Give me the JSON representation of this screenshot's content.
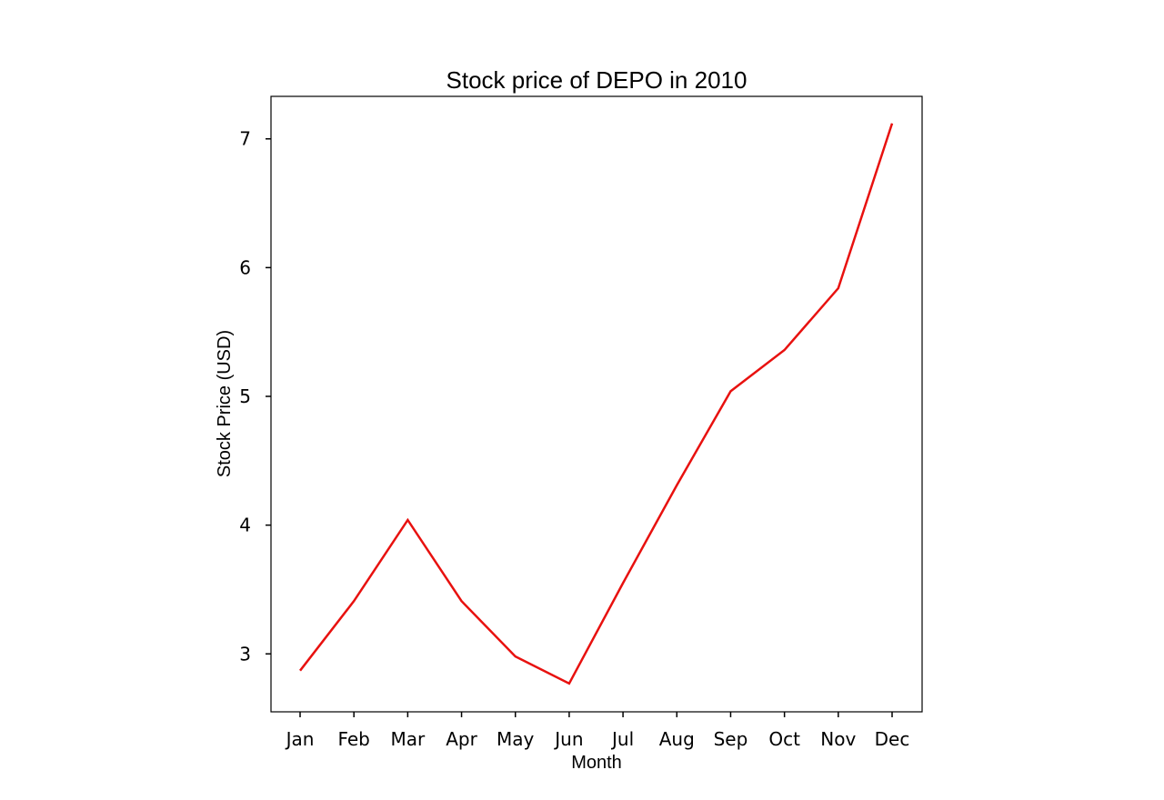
{
  "chart_data": {
    "type": "line",
    "title": "Stock price of DEPO in 2010",
    "xlabel": "Month",
    "ylabel": "Stock Price (USD)",
    "categories": [
      "Jan",
      "Feb",
      "Mar",
      "Apr",
      "May",
      "Jun",
      "Jul",
      "Aug",
      "Sep",
      "Oct",
      "Nov",
      "Dec"
    ],
    "series": [
      {
        "values": [
          2.87,
          3.41,
          4.04,
          3.41,
          2.98,
          2.77,
          3.55,
          4.31,
          5.04,
          5.36,
          5.84,
          7.12
        ],
        "color": "#e8110f"
      }
    ],
    "ylim": [
      2.55,
      7.33
    ],
    "yticks": [
      3,
      4,
      5,
      6,
      7
    ],
    "grid": false,
    "legend": "none"
  }
}
